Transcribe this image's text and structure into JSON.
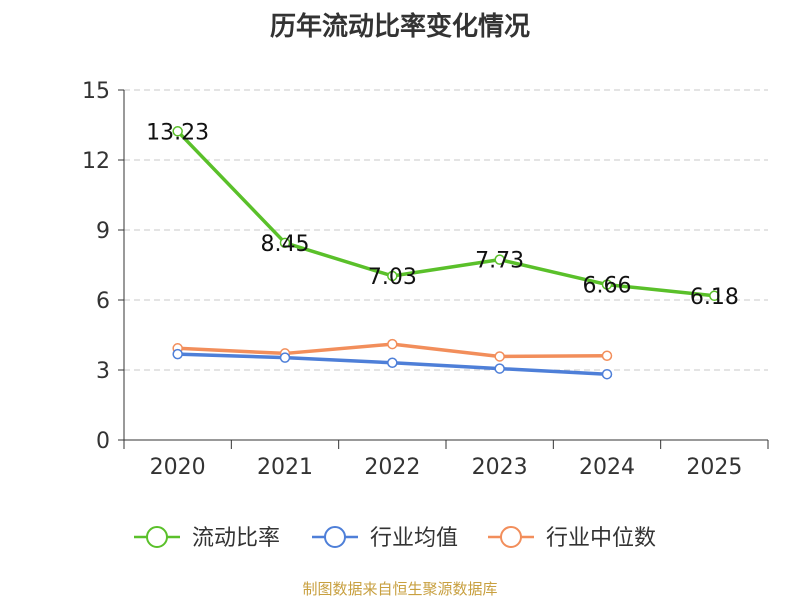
{
  "chart_data": {
    "type": "line",
    "title": "历年流动比率变化情况",
    "xlabel": "",
    "ylabel": "",
    "categories": [
      "2020",
      "2021",
      "2022",
      "2023",
      "2024",
      "2025"
    ],
    "ylim": [
      0,
      15
    ],
    "yticks": [
      0,
      3,
      6,
      9,
      12,
      15
    ],
    "grid": "horizontal-dashed",
    "legend_position": "bottom",
    "series": [
      {
        "name": "流动比率",
        "color": "#5ac02a",
        "show_labels": true,
        "values": [
          13.23,
          8.45,
          7.03,
          7.73,
          6.66,
          6.18
        ],
        "labels": [
          "13.23",
          "8.45",
          "7.03",
          "7.73",
          "6.66",
          "6.18"
        ]
      },
      {
        "name": "行业均值",
        "color": "#4e7fd8",
        "show_labels": false,
        "values": [
          3.68,
          3.53,
          3.31,
          3.06,
          2.82,
          null
        ]
      },
      {
        "name": "行业中位数",
        "color": "#f28e5b",
        "show_labels": false,
        "values": [
          3.93,
          3.71,
          4.11,
          3.58,
          3.61,
          null
        ]
      }
    ]
  },
  "footer": {
    "source": "制图数据来自恒生聚源数据库"
  }
}
